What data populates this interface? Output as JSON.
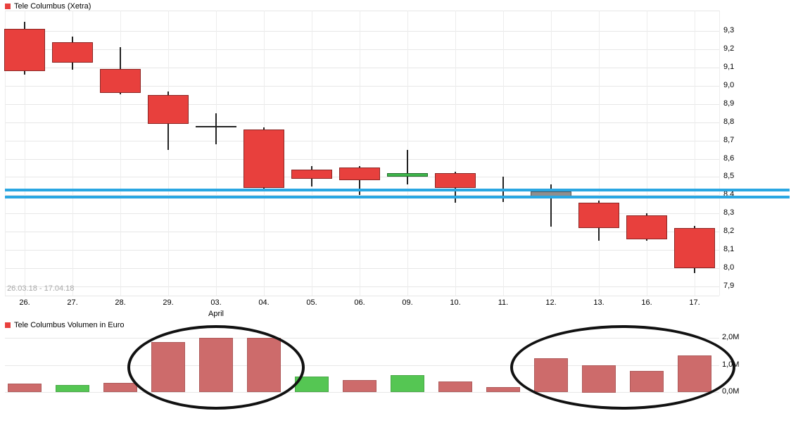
{
  "page": {
    "background": "#ffffff"
  },
  "chart_data": [
    {
      "type": "candlestick",
      "title": "Tele Columbus (Xetra)",
      "date_range": "26.03.18 - 17.04.18",
      "x": [
        "26.",
        "27.",
        "28.",
        "29.",
        "03.",
        "04.",
        "05.",
        "06.",
        "09.",
        "10.",
        "11.",
        "12.",
        "13.",
        "16.",
        "17."
      ],
      "month_label": "April",
      "month_under_index": 4,
      "ylim": [
        7.9,
        9.41
      ],
      "y_ticks": [
        {
          "label": "9,3",
          "value": 9.3
        },
        {
          "label": "9,2",
          "value": 9.2
        },
        {
          "label": "9,1",
          "value": 9.1
        },
        {
          "label": "9,0",
          "value": 9.0
        },
        {
          "label": "8,9",
          "value": 8.9
        },
        {
          "label": "8,8",
          "value": 8.8
        },
        {
          "label": "8,7",
          "value": 8.7
        },
        {
          "label": "8,6",
          "value": 8.6
        },
        {
          "label": "8,5",
          "value": 8.5
        },
        {
          "label": "8,4",
          "value": 8.4
        },
        {
          "label": "8,3",
          "value": 8.3
        },
        {
          "label": "8,2",
          "value": 8.2
        },
        {
          "label": "8,1",
          "value": 8.1
        },
        {
          "label": "8,0",
          "value": 8.0
        },
        {
          "label": "7,9",
          "value": 7.9
        }
      ],
      "candles": [
        {
          "date": "26.",
          "o": 9.31,
          "h": 9.35,
          "l": 9.06,
          "c": 9.08,
          "dir": "down"
        },
        {
          "date": "27.",
          "o": 9.24,
          "h": 9.27,
          "l": 9.09,
          "c": 9.13,
          "dir": "down"
        },
        {
          "date": "28.",
          "o": 9.09,
          "h": 9.21,
          "l": 8.95,
          "c": 8.96,
          "dir": "down"
        },
        {
          "date": "29.",
          "o": 8.95,
          "h": 8.97,
          "l": 8.65,
          "c": 8.79,
          "dir": "down"
        },
        {
          "date": "03.",
          "o": 8.78,
          "h": 8.85,
          "l": 8.68,
          "c": 8.78,
          "dir": "doji"
        },
        {
          "date": "04.",
          "o": 8.76,
          "h": 8.77,
          "l": 8.43,
          "c": 8.44,
          "dir": "down"
        },
        {
          "date": "05.",
          "o": 8.54,
          "h": 8.56,
          "l": 8.45,
          "c": 8.49,
          "dir": "down"
        },
        {
          "date": "06.",
          "o": 8.55,
          "h": 8.56,
          "l": 8.4,
          "c": 8.48,
          "dir": "down"
        },
        {
          "date": "09.",
          "o": 8.5,
          "h": 8.65,
          "l": 8.46,
          "c": 8.52,
          "dir": "up"
        },
        {
          "date": "10.",
          "o": 8.52,
          "h": 8.53,
          "l": 8.36,
          "c": 8.44,
          "dir": "down"
        },
        {
          "date": "11.",
          "o": 8.43,
          "h": 8.5,
          "l": 8.36,
          "c": 8.43,
          "dir": "none"
        },
        {
          "date": "12.",
          "o": 8.42,
          "h": 8.46,
          "l": 8.23,
          "c": 8.38,
          "dir": "neutral"
        },
        {
          "date": "13.",
          "o": 8.36,
          "h": 8.37,
          "l": 8.15,
          "c": 8.22,
          "dir": "down"
        },
        {
          "date": "16.",
          "o": 8.29,
          "h": 8.3,
          "l": 8.15,
          "c": 8.16,
          "dir": "down"
        },
        {
          "date": "17.",
          "o": 8.22,
          "h": 8.23,
          "l": 7.97,
          "c": 8.0,
          "dir": "down"
        }
      ],
      "support_lines": [
        8.43,
        8.39
      ],
      "support_color": "#2aa7e2",
      "colors": {
        "up": "#3db54a",
        "down": "#e8403d",
        "neutral": "#8f8f8f",
        "doji": "#222222",
        "wick": "#222222"
      }
    },
    {
      "type": "bar",
      "title": "Tele Columbus Volumen in Euro",
      "x": [
        "26.",
        "27.",
        "28.",
        "29.",
        "03.",
        "04.",
        "05.",
        "06.",
        "09.",
        "10.",
        "11.",
        "12.",
        "13.",
        "16.",
        "17."
      ],
      "values": [
        0.3,
        0.25,
        0.33,
        1.85,
        2.0,
        2.0,
        0.58,
        0.45,
        0.62,
        0.4,
        0.18,
        1.25,
        1.0,
        0.78,
        1.35
      ],
      "bar_colors": [
        "red",
        "green",
        "red",
        "red",
        "red",
        "red",
        "green",
        "red",
        "green",
        "red",
        "red",
        "red",
        "red",
        "red",
        "red"
      ],
      "y_ticks": [
        {
          "label": "2,0M",
          "value": 2.0
        },
        {
          "label": "1,0M",
          "value": 1.0
        },
        {
          "label": "0,0M",
          "value": 0.0
        }
      ],
      "ylim": [
        0,
        2.2
      ],
      "colors": {
        "up": "#55c653",
        "down": "#cd6b6b"
      }
    }
  ],
  "annotations": [
    {
      "type": "ellipse",
      "note": "circled high-volume cluster 29.-04.",
      "from_index": 3,
      "to_index": 5
    },
    {
      "type": "ellipse",
      "note": "circled high-volume cluster 12.-17.",
      "from_index": 11,
      "to_index": 14
    }
  ]
}
